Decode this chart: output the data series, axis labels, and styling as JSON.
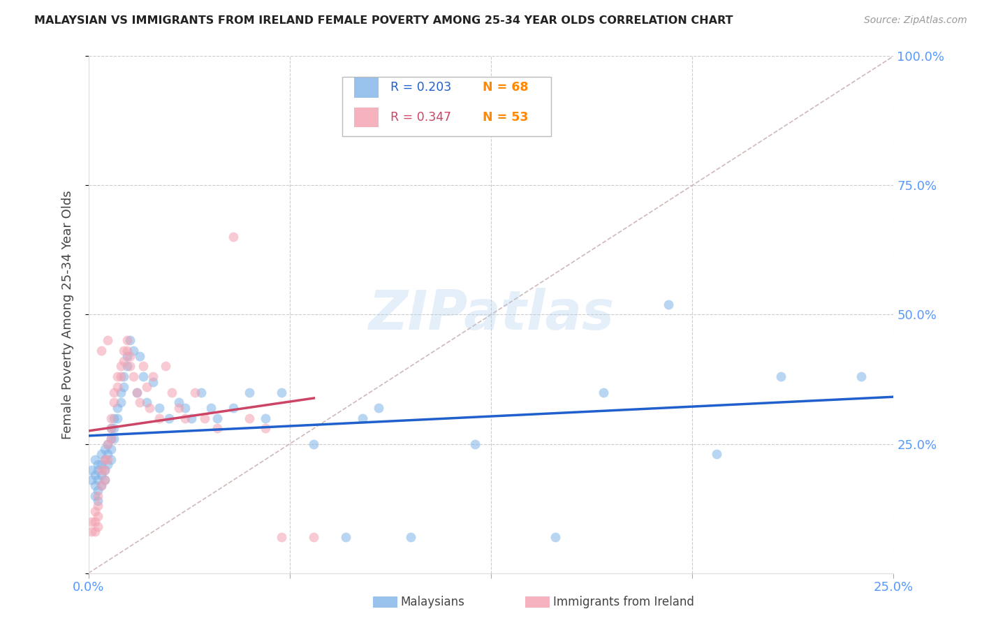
{
  "title": "MALAYSIAN VS IMMIGRANTS FROM IRELAND FEMALE POVERTY AMONG 25-34 YEAR OLDS CORRELATION CHART",
  "source": "Source: ZipAtlas.com",
  "ylabel": "Female Poverty Among 25-34 Year Olds",
  "xlim": [
    0.0,
    0.25
  ],
  "ylim": [
    0.0,
    1.0
  ],
  "xticks": [
    0.0,
    0.0625,
    0.125,
    0.1875,
    0.25
  ],
  "yticks": [
    0.0,
    0.25,
    0.5,
    0.75,
    1.0
  ],
  "legend1_label": "Malaysians",
  "legend2_label": "Immigrants from Ireland",
  "R1": 0.203,
  "N1": 68,
  "R2": 0.347,
  "N2": 53,
  "blue_color": "#7EB3E8",
  "pink_color": "#F4A0B0",
  "trend_blue": "#2060CC",
  "trend_pink": "#CC4466",
  "ref_line_color": "#D0B8B8",
  "background_color": "#FFFFFF",
  "grid_color": "#CCCCCC",
  "title_color": "#222222",
  "axis_label_color": "#444444",
  "tick_label_color": "#5599FF",
  "N_color": "#FF8800",
  "malaysians_x": [
    0.001,
    0.001,
    0.002,
    0.002,
    0.002,
    0.002,
    0.003,
    0.003,
    0.003,
    0.003,
    0.003,
    0.004,
    0.004,
    0.004,
    0.004,
    0.005,
    0.005,
    0.005,
    0.005,
    0.006,
    0.006,
    0.006,
    0.007,
    0.007,
    0.007,
    0.007,
    0.008,
    0.008,
    0.008,
    0.009,
    0.009,
    0.01,
    0.01,
    0.011,
    0.011,
    0.012,
    0.012,
    0.013,
    0.014,
    0.015,
    0.016,
    0.017,
    0.018,
    0.02,
    0.022,
    0.025,
    0.028,
    0.03,
    0.032,
    0.035,
    0.038,
    0.04,
    0.045,
    0.05,
    0.055,
    0.06,
    0.07,
    0.08,
    0.085,
    0.09,
    0.1,
    0.12,
    0.145,
    0.16,
    0.18,
    0.195,
    0.215,
    0.24
  ],
  "malaysians_y": [
    0.2,
    0.18,
    0.22,
    0.19,
    0.17,
    0.15,
    0.21,
    0.2,
    0.18,
    0.16,
    0.14,
    0.23,
    0.21,
    0.19,
    0.17,
    0.24,
    0.22,
    0.2,
    0.18,
    0.25,
    0.23,
    0.21,
    0.28,
    0.26,
    0.24,
    0.22,
    0.3,
    0.28,
    0.26,
    0.32,
    0.3,
    0.35,
    0.33,
    0.38,
    0.36,
    0.42,
    0.4,
    0.45,
    0.43,
    0.35,
    0.42,
    0.38,
    0.33,
    0.37,
    0.32,
    0.3,
    0.33,
    0.32,
    0.3,
    0.35,
    0.32,
    0.3,
    0.32,
    0.35,
    0.3,
    0.35,
    0.25,
    0.07,
    0.3,
    0.32,
    0.07,
    0.25,
    0.07,
    0.35,
    0.52,
    0.23,
    0.38,
    0.38
  ],
  "ireland_x": [
    0.001,
    0.001,
    0.002,
    0.002,
    0.002,
    0.003,
    0.003,
    0.003,
    0.003,
    0.004,
    0.004,
    0.004,
    0.005,
    0.005,
    0.005,
    0.006,
    0.006,
    0.006,
    0.007,
    0.007,
    0.007,
    0.008,
    0.008,
    0.009,
    0.009,
    0.01,
    0.01,
    0.011,
    0.011,
    0.012,
    0.012,
    0.013,
    0.013,
    0.014,
    0.015,
    0.016,
    0.017,
    0.018,
    0.019,
    0.02,
    0.022,
    0.024,
    0.026,
    0.028,
    0.03,
    0.033,
    0.036,
    0.04,
    0.045,
    0.05,
    0.055,
    0.06,
    0.07
  ],
  "ireland_y": [
    0.1,
    0.08,
    0.12,
    0.1,
    0.08,
    0.15,
    0.13,
    0.11,
    0.09,
    0.43,
    0.2,
    0.17,
    0.22,
    0.2,
    0.18,
    0.45,
    0.25,
    0.22,
    0.3,
    0.28,
    0.26,
    0.35,
    0.33,
    0.38,
    0.36,
    0.4,
    0.38,
    0.43,
    0.41,
    0.45,
    0.43,
    0.42,
    0.4,
    0.38,
    0.35,
    0.33,
    0.4,
    0.36,
    0.32,
    0.38,
    0.3,
    0.4,
    0.35,
    0.32,
    0.3,
    0.35,
    0.3,
    0.28,
    0.65,
    0.3,
    0.28,
    0.07,
    0.07
  ],
  "marker_size": 100,
  "marker_alpha": 0.55,
  "watermark": "ZIPatlas",
  "watermark_color": "#AACCEE",
  "watermark_alpha": 0.3
}
